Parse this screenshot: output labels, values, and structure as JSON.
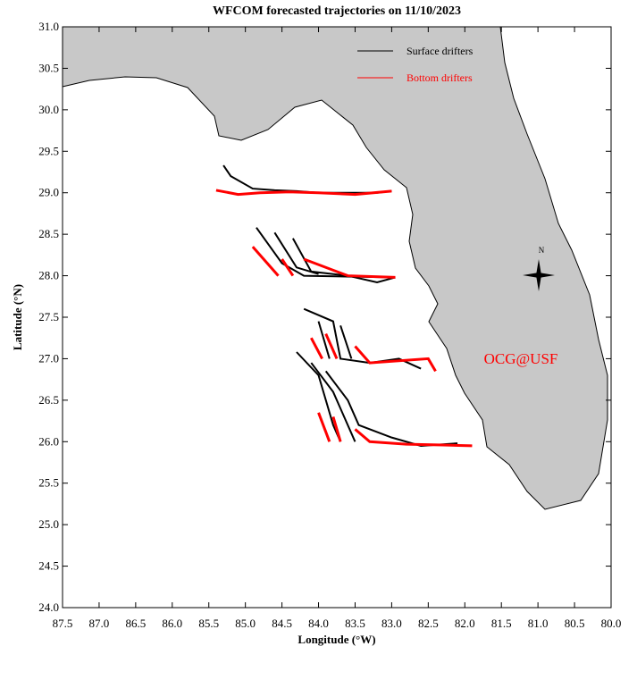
{
  "chart_data": {
    "type": "line",
    "title": "WFCOM forecasted trajectories on 11/10/2023",
    "x_label": "Longitude (°W)",
    "y_label": "Latitude (°N)",
    "annotation": "OCG@USF",
    "compass_label": "N",
    "xlim": [
      87.5,
      80.0
    ],
    "ylim": [
      24.0,
      31.0
    ],
    "xticks": [
      87.5,
      {
        "value": 87,
        "label": "87.0"
      },
      86.5,
      {
        "value": 86,
        "label": "86.0"
      },
      85.5,
      {
        "value": 85,
        "label": "85.0"
      },
      84.5,
      {
        "value": 84,
        "label": "84.0"
      },
      83.5,
      {
        "value": 83,
        "label": "83.0"
      },
      82.5,
      {
        "value": 82,
        "label": "82.0"
      },
      81.5,
      {
        "value": 81,
        "label": "81.0"
      },
      80.5,
      {
        "value": 80,
        "label": "80.0"
      }
    ],
    "yticks": [
      {
        "value": 31,
        "label": "31.0"
      },
      30.5,
      {
        "value": 30,
        "label": "30.0"
      },
      29.5,
      {
        "value": 29,
        "label": "29.0"
      },
      28.5,
      {
        "value": 28,
        "label": "28.0"
      },
      27.5,
      {
        "value": 27,
        "label": "27.0"
      },
      26.5,
      {
        "value": 26,
        "label": "26.0"
      },
      25.5,
      {
        "value": 25,
        "label": "25.0"
      },
      24.5,
      {
        "value": 24,
        "label": "24.0"
      }
    ],
    "series": [
      {
        "name": "Surface drifters",
        "color": "#000000",
        "tracks": [
          {
            "x": [
              85.3,
              85.2,
              84.9,
              84.6,
              84.3,
              84.0,
              83.6,
              83.2,
              83.0
            ],
            "y": [
              29.33,
              29.2,
              29.05,
              29.03,
              29.02,
              29.0,
              29.0,
              29.0,
              29.02
            ]
          },
          {
            "x": [
              84.85,
              84.5,
              84.2,
              83.0
            ],
            "y": [
              28.58,
              28.15,
              28.0,
              27.98
            ]
          },
          {
            "x": [
              84.6,
              84.3,
              84.0
            ],
            "y": [
              28.52,
              28.1,
              28.02
            ]
          },
          {
            "x": [
              84.35,
              84.1,
              83.6,
              83.2,
              82.95
            ],
            "y": [
              28.45,
              28.05,
              28.0,
              27.92,
              27.98
            ]
          },
          {
            "x": [
              84.2,
              83.8,
              83.7,
              83.3,
              82.9,
              82.6
            ],
            "y": [
              27.6,
              27.45,
              27.0,
              26.95,
              27.0,
              26.88
            ]
          },
          {
            "x": [
              84.0,
              83.85
            ],
            "y": [
              27.45,
              27.0
            ]
          },
          {
            "x": [
              83.7,
              83.55
            ],
            "y": [
              27.4,
              27.0
            ]
          },
          {
            "x": [
              84.3,
              84.0,
              83.8,
              83.7
            ],
            "y": [
              27.08,
              26.8,
              26.2,
              26.0
            ]
          },
          {
            "x": [
              84.1,
              83.8,
              83.5
            ],
            "y": [
              26.95,
              26.6,
              26.0
            ]
          },
          {
            "x": [
              83.9,
              83.6,
              83.45,
              83.0,
              82.6,
              82.1
            ],
            "y": [
              26.85,
              26.5,
              26.2,
              26.05,
              25.95,
              25.98
            ]
          }
        ]
      },
      {
        "name": "Bottom drifters",
        "color": "#ff0000",
        "tracks": [
          {
            "x": [
              85.4,
              85.1,
              84.8,
              84.4,
              84.0,
              83.5,
              83.0
            ],
            "y": [
              29.03,
              28.98,
              29.0,
              29.01,
              29.0,
              28.98,
              29.02
            ]
          },
          {
            "x": [
              84.9,
              84.55
            ],
            "y": [
              28.35,
              28.0
            ]
          },
          {
            "x": [
              84.5,
              84.35
            ],
            "y": [
              28.2,
              28.0
            ]
          },
          {
            "x": [
              84.2,
              83.6,
              82.95
            ],
            "y": [
              28.2,
              28.0,
              27.98
            ]
          },
          {
            "x": [
              83.9,
              83.75
            ],
            "y": [
              27.3,
              27.0
            ]
          },
          {
            "x": [
              84.1,
              83.95
            ],
            "y": [
              27.25,
              27.0
            ]
          },
          {
            "x": [
              83.5,
              83.3,
              82.5,
              82.4
            ],
            "y": [
              27.15,
              26.95,
              27.0,
              26.85
            ]
          },
          {
            "x": [
              84.0,
              83.85
            ],
            "y": [
              26.35,
              26.0
            ]
          },
          {
            "x": [
              83.8,
              83.7
            ],
            "y": [
              26.3,
              26.0
            ]
          },
          {
            "x": [
              83.5,
              83.3,
              82.8,
              82.3,
              81.9
            ],
            "y": [
              26.15,
              26.0,
              25.97,
              25.96,
              25.95
            ]
          }
        ]
      }
    ]
  }
}
